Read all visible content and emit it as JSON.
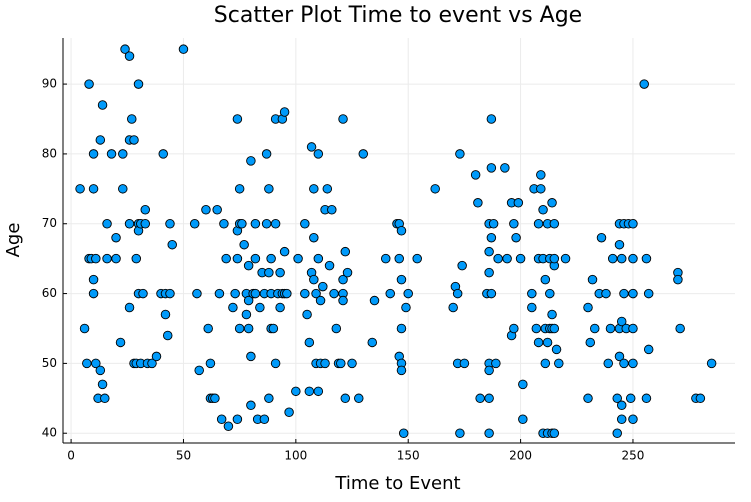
{
  "chart_data": {
    "type": "scatter",
    "title": "Scatter Plot Time to event vs Age",
    "x_label": "Time to Event",
    "y_label": "Age",
    "color": "#009afa",
    "grid": true,
    "xlim": [
      -3.6,
      295.4
    ],
    "ylim": [
      38.6,
      96.6
    ],
    "xticks": [
      0,
      50,
      100,
      150,
      200,
      250
    ],
    "yticks": [
      40,
      50,
      60,
      70,
      80,
      90
    ],
    "x": [
      4,
      6,
      8,
      8,
      7,
      9,
      10,
      10,
      10,
      10,
      11,
      11,
      12,
      13,
      13,
      14,
      14,
      15,
      16,
      16,
      18,
      20,
      20,
      22,
      23,
      23,
      24,
      26,
      26,
      26,
      26,
      27,
      28,
      28,
      29,
      29,
      30,
      30,
      30,
      30,
      31,
      31,
      32,
      33,
      33,
      34,
      36,
      38,
      40,
      41,
      42,
      42,
      43,
      44,
      44,
      45,
      50,
      55,
      56,
      57,
      60,
      61,
      62,
      62,
      63,
      64,
      65,
      66,
      67,
      68,
      69,
      70,
      72,
      73,
      74,
      74,
      74,
      74,
      75,
      75,
      75,
      76,
      77,
      78,
      78,
      79,
      79,
      79,
      80,
      80,
      80,
      81,
      82,
      82,
      82,
      83,
      84,
      85,
      86,
      86,
      87,
      87,
      88,
      88,
      88,
      89,
      89,
      89,
      90,
      91,
      91,
      91,
      92,
      93,
      93,
      94,
      94,
      95,
      95,
      95,
      96,
      97,
      100,
      101,
      104,
      104,
      105,
      106,
      106,
      107,
      107,
      108,
      108,
      108,
      109,
      109,
      110,
      110,
      110,
      111,
      111,
      112,
      113,
      113,
      114,
      115,
      116,
      117,
      118,
      119,
      120,
      121,
      121,
      121,
      121,
      122,
      122,
      123,
      125,
      128,
      130,
      134,
      135,
      140,
      142,
      145,
      146,
      146,
      146,
      147,
      147,
      147,
      147,
      147,
      148,
      149,
      150,
      154,
      162,
      170,
      171,
      172,
      172,
      173,
      173,
      174,
      175,
      180,
      181,
      182,
      185,
      186,
      186,
      186,
      186,
      186,
      186,
      186,
      187,
      187,
      187,
      187,
      188,
      189,
      190,
      193,
      194,
      196,
      196,
      197,
      197,
      198,
      199,
      200,
      201,
      201,
      205,
      205,
      206,
      207,
      208,
      208,
      208,
      209,
      209,
      210,
      210,
      210,
      211,
      211,
      211,
      212,
      212,
      212,
      213,
      213,
      213,
      214,
      214,
      214,
      214,
      215,
      215,
      215,
      215,
      215,
      216,
      217,
      220,
      230,
      230,
      231,
      232,
      233,
      235,
      236,
      238,
      239,
      240,
      241,
      243,
      243,
      244,
      244,
      244,
      244,
      245,
      245,
      245,
      245,
      246,
      246,
      246,
      247,
      248,
      249,
      250,
      250,
      250,
      250,
      250,
      250,
      255,
      256,
      256,
      257,
      257,
      270,
      270,
      271,
      278,
      280,
      285
    ],
    "values": [
      75,
      55,
      90,
      65,
      50,
      65,
      75,
      80,
      62,
      60,
      65,
      50,
      45,
      49,
      82,
      87,
      47,
      45,
      70,
      65,
      80,
      68,
      65,
      53,
      75,
      80,
      95,
      94,
      82,
      70,
      58,
      85,
      82,
      50,
      65,
      50,
      90,
      70,
      69,
      60,
      50,
      70,
      60,
      72,
      70,
      50,
      50,
      51,
      60,
      80,
      60,
      57,
      54,
      70,
      60,
      67,
      95,
      70,
      60,
      49,
      72,
      55,
      45,
      50,
      45,
      45,
      72,
      60,
      42,
      70,
      65,
      41,
      58,
      60,
      85,
      65,
      69,
      42,
      55,
      70,
      75,
      70,
      67,
      60,
      57,
      64,
      55,
      59,
      79,
      51,
      44,
      60,
      70,
      65,
      60,
      42,
      58,
      63,
      60,
      42,
      70,
      80,
      75,
      45,
      63,
      60,
      65,
      55,
      55,
      50,
      85,
      70,
      60,
      58,
      63,
      85,
      60,
      86,
      66,
      60,
      60,
      43,
      46,
      65,
      60,
      70,
      57,
      53,
      46,
      63,
      81,
      75,
      62,
      68,
      50,
      60,
      46,
      80,
      65,
      59,
      50,
      61,
      50,
      72,
      75,
      64,
      72,
      60,
      55,
      50,
      50,
      85,
      62,
      60,
      59,
      66,
      45,
      63,
      50,
      45,
      80,
      53,
      59,
      65,
      60,
      70,
      51,
      65,
      70,
      62,
      50,
      49,
      55,
      69,
      40,
      58,
      60,
      65,
      75,
      58,
      61,
      60,
      50,
      40,
      80,
      64,
      50,
      77,
      73,
      45,
      60,
      50,
      40,
      45,
      63,
      66,
      49,
      70,
      78,
      85,
      60,
      68,
      70,
      50,
      65,
      78,
      65,
      73,
      54,
      55,
      70,
      68,
      73,
      65,
      47,
      42,
      60,
      58,
      75,
      55,
      65,
      70,
      53,
      75,
      77,
      40,
      72,
      65,
      50,
      62,
      55,
      53,
      70,
      40,
      65,
      55,
      60,
      73,
      40,
      55,
      57,
      64,
      70,
      40,
      55,
      65,
      52,
      50,
      65,
      58,
      45,
      53,
      62,
      55,
      60,
      68,
      60,
      50,
      55,
      65,
      40,
      45,
      55,
      51,
      67,
      70,
      42,
      56,
      65,
      44,
      60,
      70,
      50,
      55,
      70,
      45,
      60,
      42,
      50,
      55,
      65,
      70,
      90,
      65,
      45,
      60,
      52,
      63,
      62,
      55,
      45,
      45,
      50
    ]
  }
}
